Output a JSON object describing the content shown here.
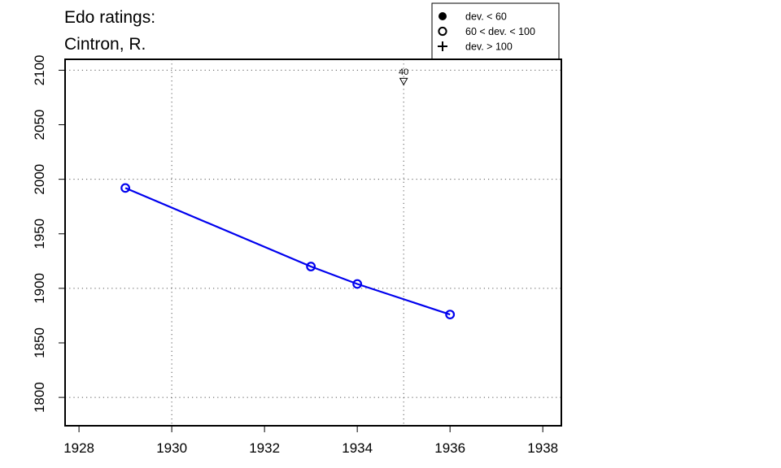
{
  "chart_data": {
    "type": "scatter",
    "title_lines": [
      "Edo ratings:",
      "Cintron, R."
    ],
    "xlabel": "",
    "ylabel": "",
    "xlim": [
      1927.7,
      1938.4
    ],
    "ylim": [
      1774,
      2110
    ],
    "x_ticks": [
      1928,
      1930,
      1932,
      1934,
      1936,
      1938
    ],
    "y_ticks": [
      1800,
      1850,
      1900,
      1950,
      2000,
      2050,
      2100
    ],
    "grid": true,
    "grid_x": [
      1930,
      1935
    ],
    "grid_y": [
      1800,
      1900,
      2000,
      2100
    ],
    "series": [
      {
        "color": "#0000ee",
        "marker": "open-circle",
        "x": [
          1929,
          1933,
          1934,
          1936
        ],
        "y": [
          1992,
          1920,
          1904,
          1876
        ]
      }
    ],
    "annotations": [
      {
        "x": 1935,
        "y": 2090,
        "label": "40",
        "marker": "down-triangle"
      }
    ],
    "legend": {
      "position": "top-right",
      "entries": [
        {
          "label": "dev. < 60",
          "symbol": "filled-circle"
        },
        {
          "label": "60 < dev. < 100",
          "symbol": "open-circle"
        },
        {
          "label": "dev. > 100",
          "symbol": "plus"
        }
      ]
    }
  }
}
